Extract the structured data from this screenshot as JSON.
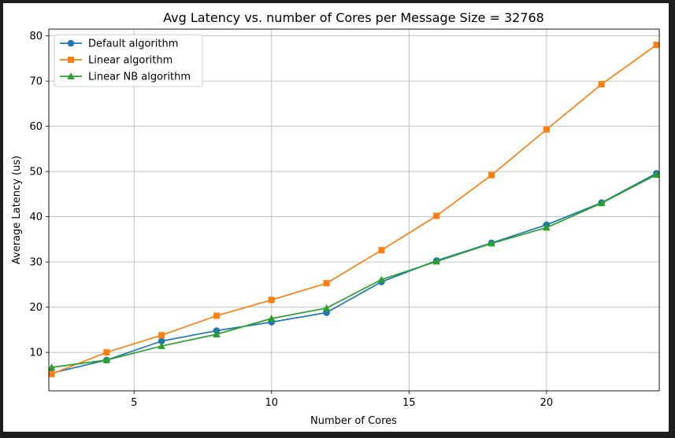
{
  "chart_data": {
    "type": "line",
    "title": "Avg Latency vs. number of Cores per Message Size = 32768",
    "xlabel": "Number of Cores",
    "ylabel": "Average Latency (us)",
    "xlim": [
      1.9,
      24.1
    ],
    "ylim": [
      1.5,
      81.5
    ],
    "xticks": [
      5,
      10,
      15,
      20,
      25
    ],
    "yticks": [
      10,
      20,
      30,
      40,
      50,
      60,
      70,
      80
    ],
    "grid": true,
    "legend_position": "top-left",
    "x": [
      2,
      4,
      6,
      8,
      10,
      12,
      14,
      16,
      18,
      20,
      22,
      24
    ],
    "series": [
      {
        "name": "Default algorithm",
        "color": "#1f77b4",
        "marker": "circle",
        "values": [
          5.4,
          8.3,
          12.5,
          14.8,
          16.7,
          18.8,
          25.6,
          30.3,
          34.2,
          38.2,
          43.1,
          49.6
        ]
      },
      {
        "name": "Linear algorithm",
        "color": "#ff7f0e",
        "marker": "square",
        "values": [
          5.2,
          10.0,
          13.8,
          18.1,
          21.6,
          25.3,
          32.6,
          40.2,
          49.2,
          59.3,
          69.3,
          78.0
        ]
      },
      {
        "name": "Linear NB algorithm",
        "color": "#2ca02c",
        "marker": "triangle",
        "values": [
          6.7,
          8.3,
          11.4,
          14.0,
          17.5,
          19.8,
          26.1,
          30.1,
          34.1,
          37.6,
          43.0,
          49.3
        ]
      }
    ]
  }
}
